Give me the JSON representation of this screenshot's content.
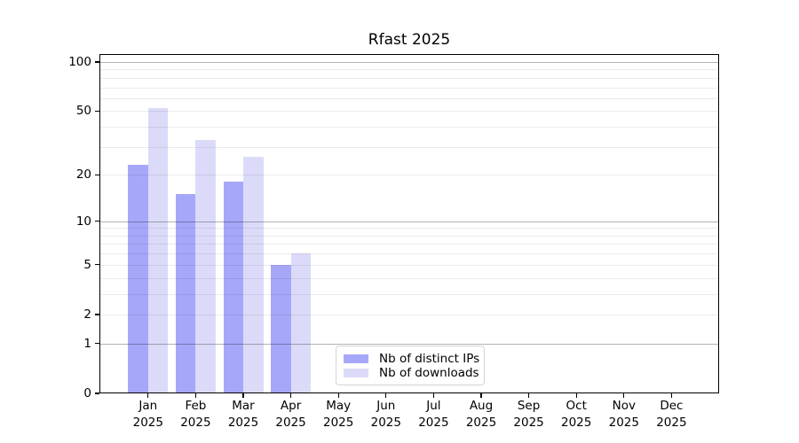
{
  "chart_data": {
    "type": "bar",
    "title": "Rfast 2025",
    "categories": [
      "Jan 2025",
      "Feb 2025",
      "Mar 2025",
      "Apr 2025",
      "May 2025",
      "Jun 2025",
      "Jul 2025",
      "Aug 2025",
      "Sep 2025",
      "Oct 2025",
      "Nov 2025",
      "Dec 2025"
    ],
    "series": [
      {
        "name": "Nb of distinct IPs",
        "color": "#a7a7f9",
        "values": [
          23,
          15,
          18,
          5,
          0,
          0,
          0,
          0,
          0,
          0,
          0,
          0
        ]
      },
      {
        "name": "Nb of downloads",
        "color": "#dbdbf9",
        "values": [
          52,
          33,
          26,
          6,
          0,
          0,
          0,
          0,
          0,
          0,
          0,
          0
        ]
      }
    ],
    "xlabel": "",
    "ylabel": "",
    "yscale": "log1p",
    "ylim": [
      0,
      112
    ],
    "yticks": [
      100,
      50,
      20,
      10,
      5,
      2,
      1,
      0
    ],
    "major_gridlines": [
      1,
      10,
      100
    ],
    "minor_gridlines": [
      2,
      3,
      4,
      5,
      6,
      7,
      8,
      9,
      20,
      30,
      40,
      50,
      60,
      70,
      80,
      90
    ],
    "grid": true,
    "legend_position": "lower center",
    "axis_color": "#000000"
  }
}
